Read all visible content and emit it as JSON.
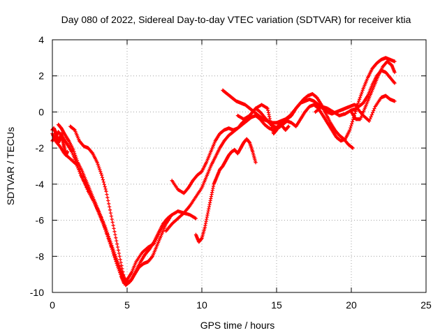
{
  "chart_data": {
    "type": "scatter",
    "title": "Day 080 of 2022, Sidereal Day-to-day VTEC variation (SDTVAR) for receiver ktia",
    "xlabel": "GPS time / hours",
    "ylabel": "SDTVAR / TECUs",
    "xlim": [
      0,
      25
    ],
    "ylim": [
      -10,
      4
    ],
    "xticks": [
      "0",
      "5",
      "10",
      "15",
      "20",
      "25"
    ],
    "yticks": [
      "-10",
      "-8",
      "-6",
      "-4",
      "-2",
      "0",
      "2",
      "4"
    ],
    "grid": true,
    "marker": "plus",
    "color": "#ff0000",
    "series": [
      {
        "x": [
          0.0,
          0.2,
          0.5,
          0.8,
          1.2,
          1.6,
          2.0,
          2.4,
          2.8,
          3.2,
          3.6,
          4.0,
          4.3,
          4.6,
          4.8,
          5.0,
          5.3,
          5.6,
          6.0,
          6.4,
          6.8,
          7.2,
          7.6,
          8.0,
          8.4,
          8.8,
          9.2,
          9.6
        ],
        "y": [
          -1.2,
          -1.6,
          -1.9,
          -2.3,
          -2.6,
          -2.9,
          -3.6,
          -4.4,
          -5.0,
          -5.7,
          -6.6,
          -7.6,
          -8.4,
          -9.1,
          -9.5,
          -9.3,
          -8.9,
          -8.3,
          -7.8,
          -7.5,
          -7.3,
          -6.6,
          -6.0,
          -5.7,
          -5.5,
          -5.6,
          -5.7,
          -5.9
        ]
      },
      {
        "x": [
          0.0,
          0.2,
          0.4,
          0.7,
          1.0,
          1.3,
          1.6,
          1.9,
          2.2,
          2.5,
          2.8,
          3.1,
          3.4,
          3.7,
          4.0,
          4.3,
          4.6,
          4.9,
          5.2,
          5.5,
          5.8,
          6.1,
          6.4,
          6.7,
          7.0,
          7.3,
          7.6,
          7.9
        ],
        "y": [
          -1.6,
          -1.4,
          -1.1,
          -1.4,
          -1.8,
          -2.2,
          -2.8,
          -3.5,
          -4.0,
          -4.5,
          -5.0,
          -5.6,
          -6.2,
          -6.9,
          -7.6,
          -8.3,
          -9.0,
          -9.6,
          -9.4,
          -9.0,
          -8.6,
          -8.4,
          -8.3,
          -8.0,
          -7.4,
          -6.8,
          -6.2,
          -5.8
        ]
      },
      {
        "x": [
          0.4,
          0.6,
          0.8,
          1.1,
          1.4,
          1.7,
          2.0,
          2.3,
          2.6,
          2.9,
          3.2,
          3.5,
          3.8,
          4.1,
          4.4,
          4.7,
          5.0,
          5.3,
          5.6,
          5.9,
          6.2,
          6.5,
          6.8,
          7.1,
          7.4,
          7.7,
          8.0
        ],
        "y": [
          -0.7,
          -0.9,
          -1.2,
          -1.6,
          -2.1,
          -2.8,
          -3.3,
          -3.9,
          -4.5,
          -5.1,
          -5.7,
          -6.3,
          -7.0,
          -7.7,
          -8.4,
          -9.0,
          -9.5,
          -9.3,
          -8.8,
          -8.3,
          -7.9,
          -7.6,
          -7.2,
          -6.7,
          -6.2,
          -5.9,
          -5.7
        ]
      },
      {
        "x": [
          1.2,
          1.5,
          1.8,
          2.1,
          2.4,
          2.7,
          3.0,
          3.3,
          3.6,
          3.9,
          4.2,
          4.5,
          4.8
        ],
        "y": [
          -0.8,
          -1.0,
          -1.6,
          -1.9,
          -2.0,
          -2.3,
          -2.8,
          -3.5,
          -4.4,
          -5.6,
          -6.8,
          -8.0,
          -9.2
        ]
      },
      {
        "x": [
          8.0,
          8.4,
          8.8,
          9.1,
          9.4,
          9.7,
          10.0,
          10.3,
          10.6,
          10.9,
          11.2,
          11.5,
          11.8,
          12.1,
          12.4,
          12.7,
          13.0,
          13.3,
          13.6,
          13.9,
          14.2,
          14.5,
          14.8,
          15.1,
          15.4,
          15.7,
          16.0,
          16.3,
          16.6,
          16.9,
          17.2,
          17.5,
          17.8,
          18.1,
          18.4,
          18.7,
          19.0,
          19.3,
          19.6,
          19.9,
          20.2,
          20.5,
          20.8,
          21.1,
          21.4,
          21.7,
          22.0,
          22.3,
          22.6,
          22.9
        ],
        "y": [
          -3.8,
          -4.3,
          -4.5,
          -4.2,
          -3.8,
          -3.5,
          -3.3,
          -2.8,
          -2.2,
          -1.6,
          -1.2,
          -1.0,
          -0.9,
          -1.0,
          -0.9,
          -0.6,
          -0.4,
          -0.1,
          0.2,
          0.0,
          -0.3,
          -0.6,
          -0.8,
          -0.9,
          -0.7,
          -0.5,
          -0.6,
          -0.8,
          -0.4,
          0.0,
          0.3,
          0.4,
          0.2,
          -0.2,
          -0.6,
          -1.0,
          -1.4,
          -1.6,
          -1.5,
          -1.0,
          -0.2,
          0.6,
          1.3,
          1.9,
          2.4,
          2.7,
          2.9,
          3.0,
          2.9,
          2.8
        ]
      },
      {
        "x": [
          7.6,
          8.0,
          8.4,
          8.8,
          9.2,
          9.6,
          10.0,
          10.3,
          10.6,
          10.9,
          11.2,
          11.5,
          11.8,
          12.1,
          12.4,
          12.7,
          13.0,
          13.3,
          13.6,
          13.9,
          14.2,
          14.5,
          14.8,
          15.1,
          15.4,
          15.7,
          16.0,
          16.3,
          16.6,
          16.9,
          17.2,
          17.5,
          17.8,
          18.1,
          18.4,
          18.7,
          19.0,
          19.3,
          19.6,
          19.9,
          20.2,
          20.5,
          20.8,
          21.1,
          21.4,
          21.7,
          22.0,
          22.3,
          22.6,
          22.9
        ],
        "y": [
          -6.6,
          -6.2,
          -5.9,
          -5.6,
          -5.2,
          -4.7,
          -4.2,
          -3.6,
          -3.0,
          -2.5,
          -2.0,
          -1.6,
          -1.3,
          -1.1,
          -0.9,
          -0.7,
          -0.5,
          -0.3,
          -0.2,
          -0.4,
          -0.7,
          -0.9,
          -1.0,
          -0.8,
          -0.6,
          -0.4,
          -0.2,
          0.2,
          0.5,
          0.6,
          0.7,
          0.6,
          0.4,
          0.2,
          0.0,
          -0.1,
          0.0,
          0.1,
          0.2,
          0.3,
          0.4,
          0.3,
          0.5,
          0.9,
          1.5,
          2.0,
          2.3,
          2.2,
          1.9,
          1.6
        ]
      },
      {
        "x": [
          9.6,
          9.8,
          10.0,
          10.2,
          10.4,
          10.6,
          10.8,
          11.0,
          11.2,
          11.4,
          11.6,
          11.8,
          12.0,
          12.2,
          12.4,
          12.6,
          12.8,
          13.0,
          13.2,
          13.4,
          13.6
        ],
        "y": [
          -6.8,
          -7.2,
          -7.0,
          -6.4,
          -5.6,
          -4.8,
          -4.0,
          -3.6,
          -3.2,
          -3.0,
          -2.7,
          -2.4,
          -2.2,
          -2.1,
          -2.3,
          -2.0,
          -1.7,
          -1.5,
          -1.7,
          -2.2,
          -2.8
        ]
      },
      {
        "x": [
          11.4,
          11.7,
          12.0,
          12.3,
          12.6,
          12.9,
          13.2,
          13.5,
          13.8,
          14.1,
          14.4,
          14.7,
          15.0,
          15.3,
          15.6,
          15.9,
          16.2,
          16.5,
          16.8,
          17.1,
          17.4,
          17.7,
          18.0,
          18.3,
          18.6,
          18.9,
          19.2,
          19.5,
          19.8,
          20.1
        ],
        "y": [
          1.2,
          1.0,
          0.8,
          0.6,
          0.5,
          0.4,
          0.2,
          0.0,
          -0.2,
          -0.4,
          -0.5,
          -0.6,
          -0.6,
          -0.5,
          -0.4,
          -0.2,
          0.1,
          0.4,
          0.7,
          0.9,
          1.0,
          0.8,
          0.4,
          -0.1,
          -0.6,
          -1.0,
          -1.3,
          -1.5,
          -1.8,
          -2.0
        ]
      },
      {
        "x": [
          12.4,
          12.8,
          13.2,
          13.6,
          14.0,
          14.4,
          14.6,
          14.8,
          15.0,
          15.2,
          15.4,
          15.6,
          15.8
        ],
        "y": [
          -0.2,
          -0.4,
          -0.2,
          0.2,
          0.4,
          0.2,
          -0.6,
          -1.2,
          -1.0,
          -0.6,
          -0.8,
          -1.0,
          -0.8
        ]
      },
      {
        "x": [
          17.6,
          18.0,
          18.4,
          18.8,
          19.2,
          19.6,
          20.0,
          20.4,
          20.8,
          21.2,
          21.6,
          22.0,
          22.3,
          22.6,
          22.9
        ],
        "y": [
          0.0,
          0.3,
          0.2,
          0.0,
          -0.2,
          -0.1,
          0.1,
          0.2,
          -0.2,
          -0.5,
          0.3,
          0.8,
          0.9,
          0.7,
          0.6
        ]
      },
      {
        "x": [
          0.0,
          0.1,
          0.2,
          0.3,
          0.4,
          0.5,
          0.6,
          0.7,
          0.8,
          0.9,
          1.0
        ],
        "y": [
          -1.0,
          -0.9,
          -1.1,
          -1.4,
          -1.7,
          -1.5,
          -1.2,
          -1.6,
          -2.0,
          -2.4,
          -2.2
        ]
      },
      {
        "x": [
          20.0,
          20.3,
          20.6,
          20.9,
          21.2,
          21.5,
          21.8,
          22.1,
          22.4,
          22.7,
          22.9
        ],
        "y": [
          0.0,
          -0.4,
          -0.4,
          0.2,
          0.8,
          1.4,
          2.0,
          2.5,
          2.8,
          2.6,
          2.2
        ]
      }
    ]
  }
}
